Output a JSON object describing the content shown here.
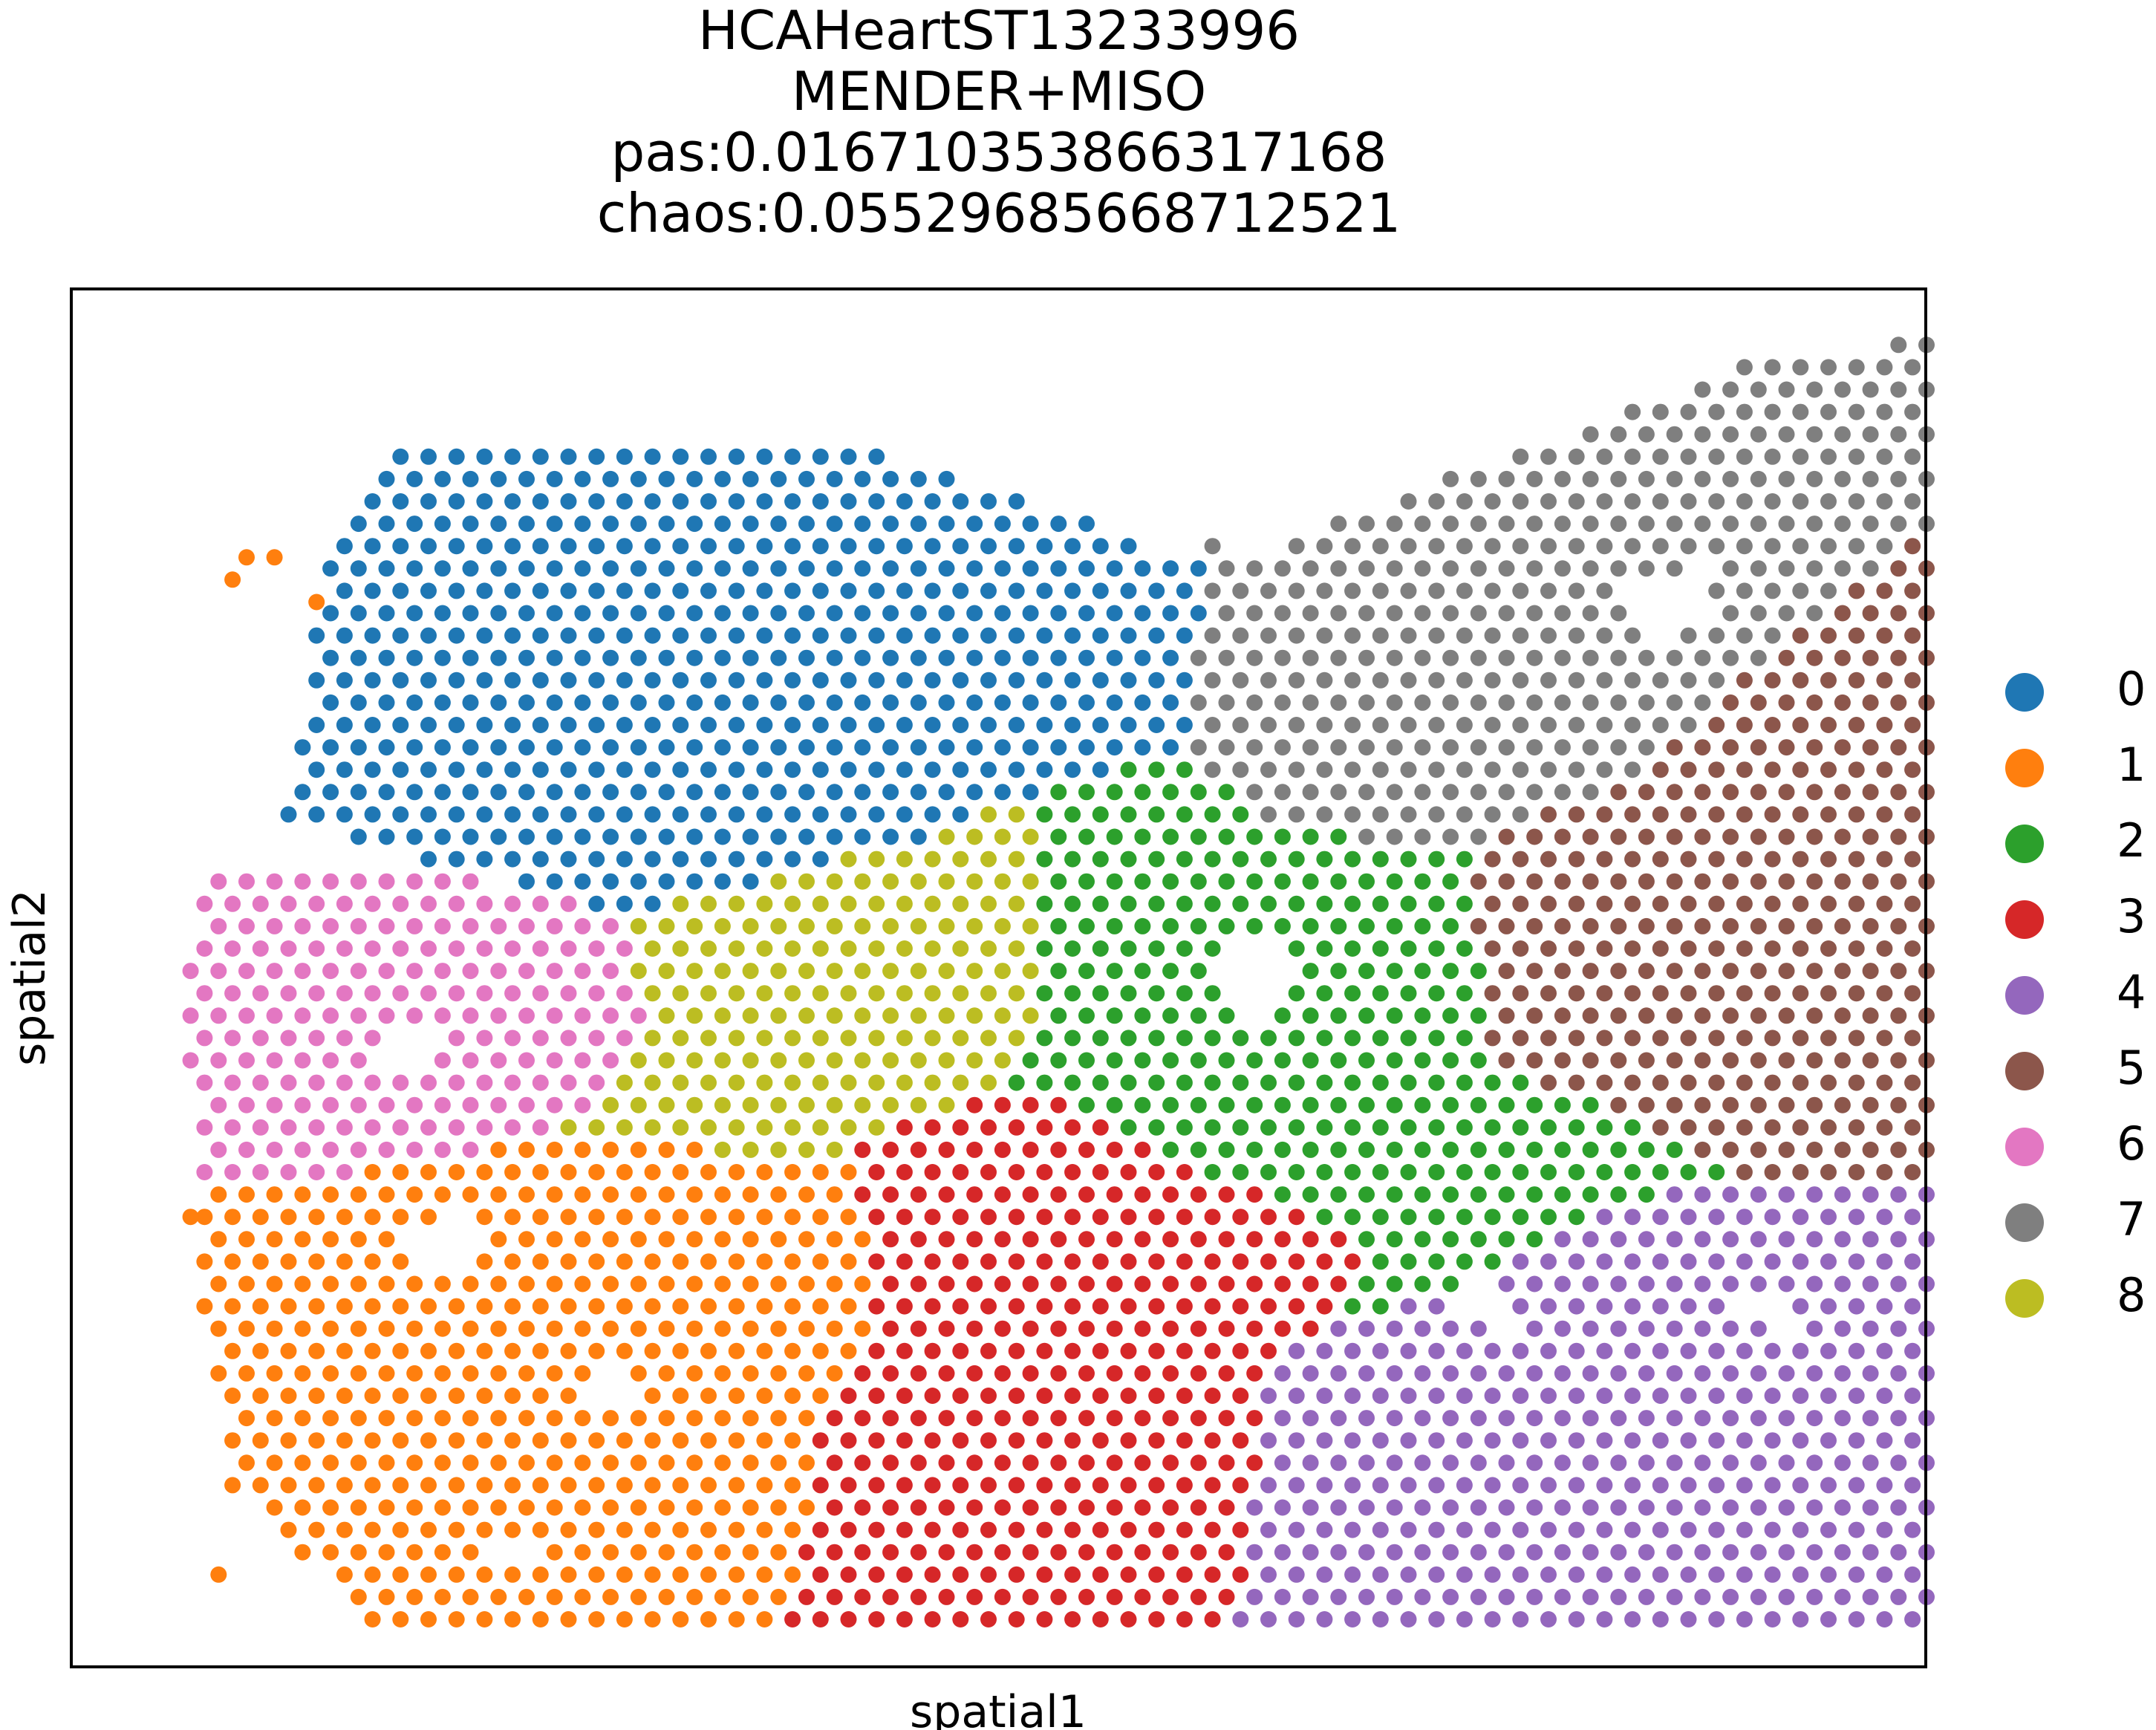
{
  "chart_data": {
    "type": "scatter",
    "title_lines": [
      "HCAHeartST13233996",
      "MENDER+MISO",
      "pas:0.016710353866317168",
      "chaos:0.05529685668712521"
    ],
    "xlabel": "spatial1",
    "ylabel": "spatial2",
    "grid": false,
    "ticks": "none",
    "legend_placement": "right",
    "legend": [
      {
        "label": "0",
        "color": "#1f77b4"
      },
      {
        "label": "1",
        "color": "#ff7f0e"
      },
      {
        "label": "2",
        "color": "#2ca02c"
      },
      {
        "label": "3",
        "color": "#d62728"
      },
      {
        "label": "4",
        "color": "#9467bd"
      },
      {
        "label": "5",
        "color": "#8c564b"
      },
      {
        "label": "6",
        "color": "#e377c2"
      },
      {
        "label": "7",
        "color": "#7f7f7f"
      },
      {
        "label": "8",
        "color": "#bcbd22"
      }
    ],
    "note": "Spots lie on a hexagonal grid (x in approx 0..64, y in approx 0..57 grid units). Each region lists polygon vertices in grid data units; spots inside are assigned that cluster.",
    "xlim": [
      -2,
      66
    ],
    "ylim": [
      -2,
      58
    ],
    "regions": [
      {
        "cluster": "7",
        "polygon": [
          [
            38,
            47
          ],
          [
            57,
            56
          ],
          [
            64,
            57.5
          ],
          [
            64,
            49
          ],
          [
            57,
            42
          ],
          [
            53,
            37.5
          ],
          [
            47,
            34.5
          ],
          [
            40,
            35.5
          ],
          [
            37,
            39
          ]
        ]
      },
      {
        "cluster": "5",
        "polygon": [
          [
            64,
            49
          ],
          [
            64,
            20
          ],
          [
            57,
            20
          ],
          [
            48,
            25
          ],
          [
            47,
            34.5
          ],
          [
            53,
            37.5
          ],
          [
            57,
            42
          ]
        ]
      },
      {
        "cluster": "0",
        "polygon": [
          [
            7,
            49
          ],
          [
            9,
            52.5
          ],
          [
            13,
            53
          ],
          [
            27,
            52
          ],
          [
            36,
            48
          ],
          [
            38,
            47
          ],
          [
            37,
            39
          ],
          [
            32,
            37
          ],
          [
            28,
            35
          ],
          [
            17,
            31.5
          ],
          [
            10,
            34
          ],
          [
            5,
            36
          ],
          [
            6,
            45
          ]
        ]
      },
      {
        "cluster": "6",
        "polygon": [
          [
            2,
            33.5
          ],
          [
            8,
            34
          ],
          [
            17,
            31.5
          ],
          [
            18,
            26.5
          ],
          [
            15,
            22
          ],
          [
            12,
            21
          ],
          [
            8,
            20
          ],
          [
            2,
            19.5
          ],
          [
            1,
            27
          ]
        ]
      },
      {
        "cluster": "8",
        "polygon": [
          [
            17,
            31.5
          ],
          [
            28,
            35
          ],
          [
            32,
            37
          ],
          [
            32,
            27
          ],
          [
            31,
            24
          ],
          [
            25,
            21
          ],
          [
            20,
            21
          ],
          [
            15,
            22
          ],
          [
            18,
            26.5
          ]
        ]
      },
      {
        "cluster": "2",
        "polygon": [
          [
            32,
            37
          ],
          [
            37,
            39
          ],
          [
            40,
            35.5
          ],
          [
            47,
            34.5
          ],
          [
            48,
            25
          ],
          [
            57,
            20
          ],
          [
            52,
            18.5
          ],
          [
            47,
            15
          ],
          [
            42,
            13
          ],
          [
            44,
            16.5
          ],
          [
            36,
            21
          ],
          [
            31,
            24
          ],
          [
            32,
            27
          ]
        ]
      },
      {
        "cluster": "3",
        "polygon": [
          [
            31,
            24
          ],
          [
            36,
            21
          ],
          [
            44,
            16.5
          ],
          [
            42,
            13
          ],
          [
            40,
            11
          ],
          [
            39,
            0
          ],
          [
            23,
            0
          ],
          [
            24,
            8
          ],
          [
            26,
            14
          ],
          [
            25,
            21
          ]
        ]
      },
      {
        "cluster": "4",
        "polygon": [
          [
            39,
            0
          ],
          [
            64,
            0
          ],
          [
            64,
            20
          ],
          [
            57,
            20
          ],
          [
            52,
            18.5
          ],
          [
            47,
            15
          ],
          [
            42,
            13
          ],
          [
            40,
            11
          ]
        ]
      },
      {
        "cluster": "1",
        "polygon": [
          [
            2,
            19.5
          ],
          [
            8,
            20
          ],
          [
            12,
            21
          ],
          [
            15,
            22
          ],
          [
            20,
            21
          ],
          [
            25,
            21
          ],
          [
            26,
            14
          ],
          [
            24,
            8
          ],
          [
            23,
            0
          ],
          [
            8,
            0
          ],
          [
            3,
            6
          ],
          [
            2,
            13
          ]
        ]
      }
    ],
    "holes": [
      [
        [
          39,
          31
        ],
        [
          41,
          31
        ],
        [
          40,
          26.5
        ],
        [
          38,
          27.5
        ]
      ],
      [
        [
          53,
          46
        ],
        [
          56,
          47.5
        ],
        [
          56,
          44.5
        ],
        [
          54,
          43.5
        ]
      ],
      [
        [
          11,
          18.5
        ],
        [
          12,
          16
        ],
        [
          10,
          15
        ],
        [
          9,
          17
        ]
      ],
      [
        [
          14,
          4.5
        ],
        [
          14,
          2
        ],
        [
          12,
          2.5
        ]
      ],
      [
        [
          47,
          16
        ],
        [
          49,
          14
        ],
        [
          49,
          12.5
        ],
        [
          47,
          14
        ]
      ],
      [
        [
          57,
          14
        ],
        [
          59,
          15
        ],
        [
          59,
          12.5
        ]
      ],
      [
        [
          8,
          25
        ],
        [
          9,
          27
        ],
        [
          11,
          26
        ],
        [
          10,
          24
        ]
      ],
      [
        [
          16,
          10
        ],
        [
          17,
          12
        ],
        [
          18,
          10
        ]
      ]
    ],
    "outliers": [
      {
        "x": 3.5,
        "y": 47.5,
        "cluster": "1"
      },
      {
        "x": 4.5,
        "y": 47.5,
        "cluster": "1"
      },
      {
        "x": 3,
        "y": 46.5,
        "cluster": "1"
      },
      {
        "x": 6,
        "y": 45.5,
        "cluster": "1"
      },
      {
        "x": 1.5,
        "y": 18,
        "cluster": "1"
      },
      {
        "x": 2.5,
        "y": 2,
        "cluster": "1"
      },
      {
        "x": 38,
        "y": 48,
        "cluster": "7"
      }
    ]
  }
}
